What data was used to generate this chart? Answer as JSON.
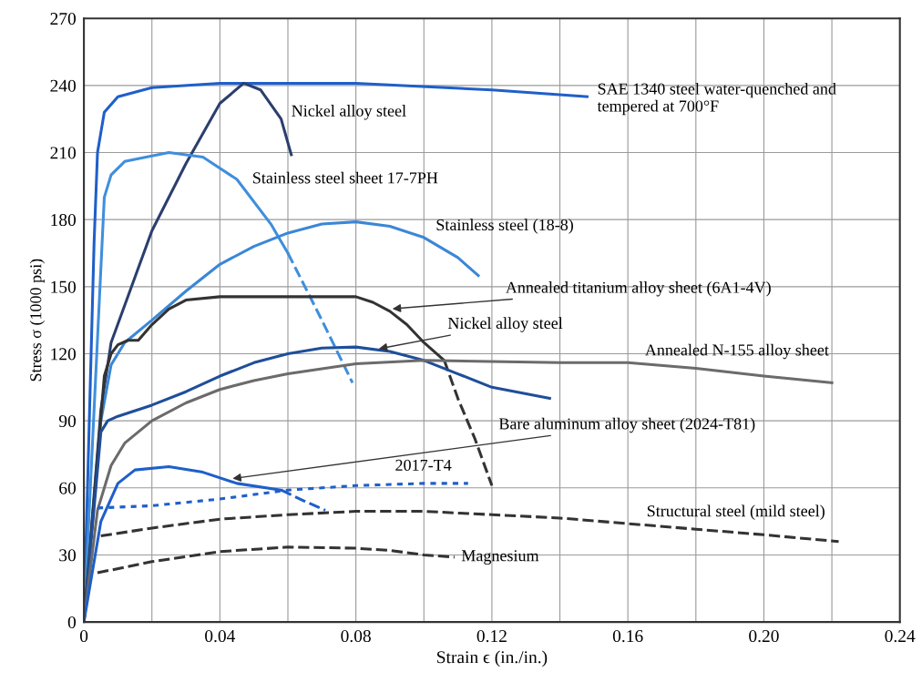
{
  "chart_data": {
    "type": "line",
    "xlabel": "Strain ϵ (in./in.)",
    "ylabel": "Stress σ (1000 psi)",
    "xlim": [
      0,
      0.24
    ],
    "ylim": [
      0,
      270
    ],
    "xticks": [
      0,
      {
        "value": 0.02,
        "label": null
      },
      0.04,
      {
        "value": 0.06,
        "label": null
      },
      0.08,
      {
        "value": 0.1,
        "label": null
      },
      0.12,
      {
        "value": 0.14,
        "label": null
      },
      0.16,
      {
        "value": 0.18,
        "label": null
      },
      {
        "value": 0.2,
        "label": "0.20"
      },
      {
        "value": 0.22,
        "label": null
      },
      0.24
    ],
    "yticks": [
      0,
      30,
      60,
      90,
      120,
      150,
      180,
      210,
      240,
      270
    ],
    "grid": true,
    "legend": false,
    "marker": "none",
    "series": [
      {
        "name": "SAE 1340 steel water-quenched and\ntempered at 700°F",
        "color": "#1f5fc9",
        "line_style": "solid",
        "x": [
          0,
          0.003,
          0.004,
          0.006,
          0.01,
          0.02,
          0.04,
          0.08,
          0.12,
          0.148
        ],
        "values": [
          0,
          170,
          210,
          228,
          235,
          239,
          241,
          241,
          238,
          235
        ]
      },
      {
        "name": "Nickel alloy steel",
        "color": "#2b3f6e",
        "line_style": "solid",
        "x": [
          0,
          0.005,
          0.008,
          0.02,
          0.03,
          0.04,
          0.047,
          0.052,
          0.058,
          0.061
        ],
        "values": [
          0,
          95,
          125,
          175,
          205,
          232,
          241,
          238,
          225,
          209
        ]
      },
      {
        "name": "Stainless steel sheet 17-7PH",
        "color": "#3f8fdc",
        "line_style": "solid",
        "x": [
          0,
          0.006,
          0.008,
          0.012,
          0.025,
          0.035,
          0.045,
          0.055,
          0.06
        ],
        "values": [
          0,
          190,
          200,
          206,
          210,
          208,
          198,
          178,
          165
        ]
      },
      {
        "color": "#3f8fdc",
        "line_style": "dashed",
        "x": [
          0.06,
          0.07,
          0.079
        ],
        "values": [
          165,
          135,
          107
        ]
      },
      {
        "name": "Stainless steel (18-8)",
        "color": "#3b87d6",
        "line_style": "solid",
        "x": [
          0,
          0.005,
          0.008,
          0.012,
          0.02,
          0.03,
          0.04,
          0.05,
          0.06,
          0.07,
          0.08,
          0.09,
          0.1,
          0.11,
          0.116
        ],
        "values": [
          0,
          90,
          115,
          125,
          135,
          148,
          160,
          168,
          174,
          178,
          179,
          177,
          172,
          163,
          155
        ]
      },
      {
        "name": "Annealed titanium alloy sheet (6A1-4V)",
        "color": "#333333",
        "line_style": "solid",
        "x": [
          0,
          0.006,
          0.008,
          0.01,
          0.013,
          0.016,
          0.02,
          0.025,
          0.03,
          0.04,
          0.08,
          0.085,
          0.09,
          0.095,
          0.1,
          0.106
        ],
        "values": [
          0,
          110,
          120,
          124,
          126,
          126,
          133,
          140,
          144,
          145.5,
          145.5,
          143,
          139,
          133,
          125,
          117
        ]
      },
      {
        "color": "#333333",
        "line_style": "dashed",
        "x": [
          0.106,
          0.11,
          0.115,
          0.12
        ],
        "values": [
          117,
          100,
          82,
          61
        ]
      },
      {
        "name": "Nickel alloy steel",
        "color": "#1f4e9a",
        "line_style": "solid",
        "x": [
          0,
          0.005,
          0.007,
          0.01,
          0.02,
          0.03,
          0.04,
          0.05,
          0.06,
          0.07,
          0.08,
          0.09,
          0.1,
          0.11,
          0.12,
          0.137
        ],
        "values": [
          0,
          85,
          90,
          92,
          97,
          103,
          110,
          116,
          120,
          122.5,
          123,
          121,
          117,
          111,
          105,
          100
        ]
      },
      {
        "name": "Annealed N-155 alloy sheet",
        "color": "#6b6b6b",
        "line_style": "solid",
        "x": [
          0,
          0.004,
          0.008,
          0.012,
          0.02,
          0.03,
          0.04,
          0.05,
          0.06,
          0.08,
          0.1,
          0.14,
          0.16,
          0.18,
          0.2,
          0.22
        ],
        "values": [
          0,
          50,
          70,
          80,
          90,
          98,
          104,
          108,
          111,
          115.5,
          117,
          116,
          116,
          113.5,
          110,
          107
        ]
      },
      {
        "name": "Bare aluminum alloy sheet (2024-T81)",
        "color": "#1f5fc9",
        "line_style": "solid",
        "x": [
          0,
          0.005,
          0.01,
          0.015,
          0.025,
          0.035,
          0.045,
          0.058
        ],
        "values": [
          0,
          45,
          62,
          68,
          69.5,
          67,
          62,
          59
        ]
      },
      {
        "color": "#1f5fc9",
        "line_style": "dashed",
        "x": [
          0.058,
          0.065,
          0.071
        ],
        "values": [
          59,
          54,
          50
        ]
      },
      {
        "name": "2017-T4",
        "color": "#1f5fc9",
        "line_style": "dotted",
        "x": [
          0.004,
          0.02,
          0.04,
          0.06,
          0.08,
          0.1,
          0.113
        ],
        "values": [
          51,
          52,
          55,
          59,
          61,
          62,
          62
        ]
      },
      {
        "name": "Structural steel (mild steel)",
        "color": "#333333",
        "line_style": "dashed",
        "x": [
          0.005,
          0.02,
          0.04,
          0.06,
          0.08,
          0.1,
          0.12,
          0.14,
          0.16,
          0.18,
          0.2,
          0.222
        ],
        "values": [
          38.5,
          42,
          46,
          48,
          49.5,
          49.5,
          48,
          46.5,
          44,
          41.5,
          39,
          36
        ]
      },
      {
        "name": "Magnesium",
        "color": "#333333",
        "line_style": "dashed",
        "x": [
          0.004,
          0.02,
          0.04,
          0.06,
          0.08,
          0.09,
          0.1,
          0.109
        ],
        "values": [
          22,
          27,
          31.5,
          33.5,
          33,
          32,
          30,
          29
        ]
      }
    ]
  }
}
